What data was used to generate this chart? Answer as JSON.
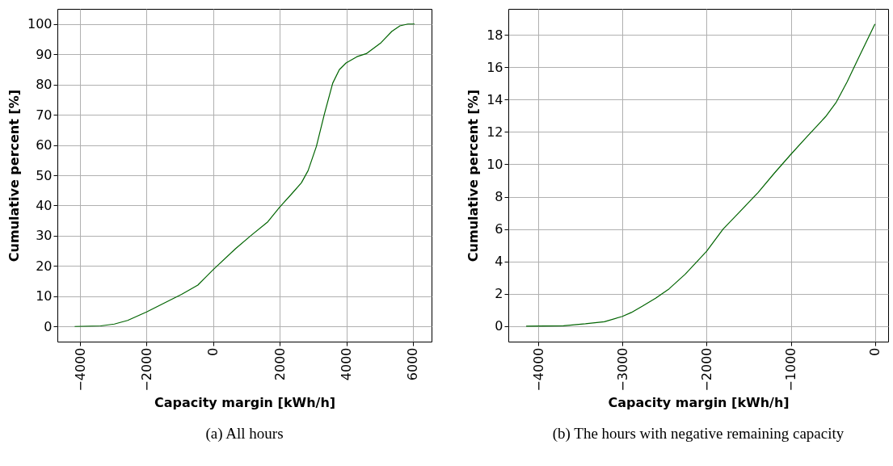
{
  "chart_data": [
    {
      "type": "line",
      "title": "(a) All hours",
      "xlabel": "Capacity margin [kWh/h]",
      "ylabel": "Cumulative percent [%]",
      "xlim": [
        -4680,
        6560
      ],
      "ylim": [
        -5,
        105
      ],
      "xticks": [
        {
          "value": -4000,
          "label": "−4000"
        },
        {
          "value": -2000,
          "label": "−2000"
        },
        0,
        2000,
        4000,
        6000
      ],
      "yticks": [
        0,
        10,
        20,
        30,
        40,
        50,
        60,
        70,
        80,
        90,
        100
      ],
      "grid": true,
      "series": [
        {
          "color": "#006400",
          "x": [
            -4160,
            -3380,
            -2970,
            -2570,
            -2000,
            -1350,
            -950,
            -460,
            20,
            670,
            1150,
            1640,
            2000,
            2370,
            2650,
            2850,
            3100,
            3340,
            3590,
            3790,
            3990,
            4320,
            4600,
            5040,
            5370,
            5610,
            5850,
            6050
          ],
          "values": [
            0,
            0.2,
            0.8,
            2,
            4.8,
            8.4,
            10.6,
            13.7,
            19,
            25.7,
            30.2,
            34.6,
            39.5,
            44,
            47.5,
            51.5,
            59.5,
            70.2,
            80.4,
            84.9,
            87.1,
            89.2,
            90.2,
            93.8,
            97.6,
            99.4,
            100,
            100
          ]
        }
      ]
    },
    {
      "type": "line",
      "title": "(b) The hours with negative remaining capacity",
      "xlabel": "Capacity margin [kWh/h]",
      "ylabel": "Cumulative percent [%]",
      "xlim": [
        -4356,
        157
      ],
      "ylim": [
        -0.95,
        19.6
      ],
      "xticks": [
        {
          "value": -4000,
          "label": "−4000"
        },
        {
          "value": -3000,
          "label": "−3000"
        },
        {
          "value": -2000,
          "label": "−2000"
        },
        {
          "value": -1000,
          "label": "−1000"
        },
        0
      ],
      "yticks": [
        0,
        2,
        4,
        6,
        8,
        10,
        12,
        14,
        16,
        18
      ],
      "grid": true,
      "series": [
        {
          "color": "#006400",
          "x": [
            -4144,
            -3700,
            -3440,
            -3215,
            -3000,
            -2894,
            -2766,
            -2606,
            -2446,
            -2253,
            -2000,
            -1804,
            -1612,
            -1388,
            -1196,
            -1000,
            -811,
            -587,
            -458,
            -330,
            -202,
            0
          ],
          "values": [
            0,
            0.03,
            0.15,
            0.28,
            0.61,
            0.85,
            1.23,
            1.73,
            2.31,
            3.22,
            4.63,
            6.0,
            7.04,
            8.26,
            9.45,
            10.61,
            11.69,
            12.94,
            13.85,
            15.1,
            16.5,
            18.67
          ]
        }
      ]
    }
  ]
}
